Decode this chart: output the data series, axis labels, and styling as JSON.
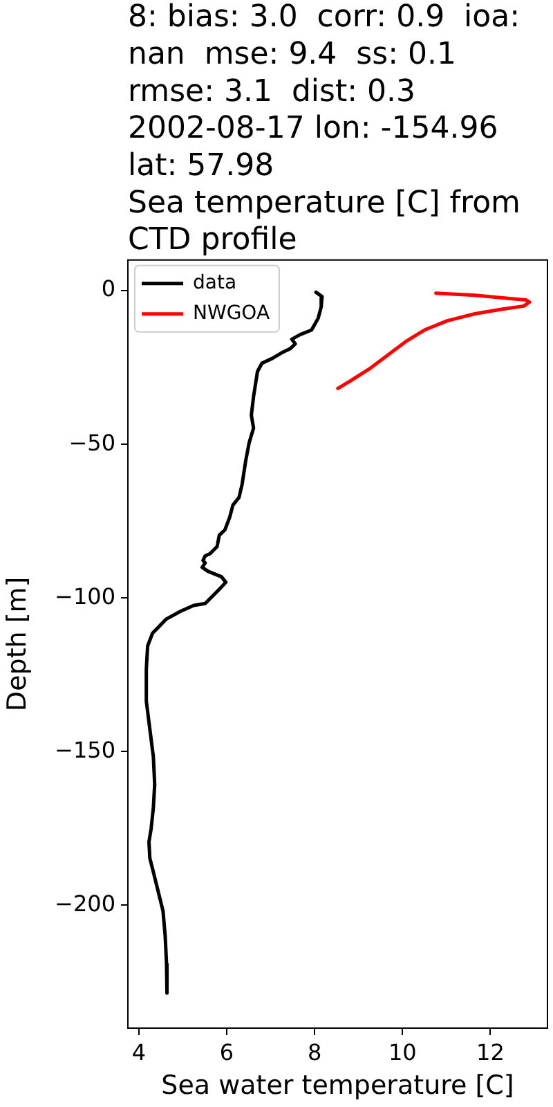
{
  "chart_data": {
    "type": "line",
    "title": "8: bias: 3.0  corr: 0.9  ioa:\nnan  mse: 9.4  ss: 0.1\nrmse: 3.1  dist: 0.3\n2002-08-17 lon: -154.96\nlat: 57.98\nSea temperature [C] from\nCTD profile",
    "xlabel": "Sea water temperature [C]",
    "ylabel": "Depth [m]",
    "xlim": [
      3.75,
      13.3
    ],
    "ylim": [
      -240,
      10
    ],
    "xticks": [
      4,
      6,
      8,
      10,
      12
    ],
    "yticks": [
      0,
      {
        "value": -50,
        "label": "−50"
      },
      {
        "value": -100,
        "label": "−100"
      },
      {
        "value": -150,
        "label": "−150"
      },
      {
        "value": -200,
        "label": "−200"
      }
    ],
    "legend": "top left",
    "series": [
      {
        "name": "data",
        "color": "#000000",
        "x": [
          8.03,
          8.17,
          8.15,
          8.08,
          7.93,
          7.67,
          7.48,
          7.56,
          7.45,
          7.24,
          7.04,
          6.8,
          6.7,
          6.61,
          6.56,
          6.61,
          6.51,
          6.43,
          6.35,
          6.28,
          6.14,
          6.07,
          5.96,
          5.83,
          5.78,
          5.62,
          5.51,
          5.46,
          5.51,
          5.44,
          5.57,
          5.88,
          5.98,
          5.78,
          5.51,
          5.25,
          4.94,
          4.62,
          4.31,
          4.2,
          4.17,
          4.17,
          4.25,
          4.33,
          4.36,
          4.33,
          4.28,
          4.23,
          4.25,
          4.33,
          4.46,
          4.55,
          4.6,
          4.63,
          4.64
        ],
        "values": [
          -0.5,
          -1.9,
          -5.3,
          -9.0,
          -12.8,
          -14.3,
          -15.8,
          -17.3,
          -18.8,
          -20.3,
          -22.0,
          -23.6,
          -26.3,
          -34.5,
          -40.5,
          -44.7,
          -49.5,
          -55.5,
          -63.0,
          -67.3,
          -69.8,
          -73.6,
          -77.8,
          -79.6,
          -83.3,
          -85.6,
          -86.3,
          -87.8,
          -88.6,
          -90.0,
          -91.3,
          -93.1,
          -94.9,
          -97.9,
          -101.8,
          -102.4,
          -104.4,
          -106.9,
          -111.5,
          -115.6,
          -123.1,
          -133.6,
          -142.7,
          -151.7,
          -160.7,
          -168.2,
          -175.0,
          -179.4,
          -184.7,
          -189.2,
          -196.7,
          -201.9,
          -210.2,
          -219.2,
          -228.6
        ]
      },
      {
        "name": "NWGOA",
        "color": "#ff0000",
        "x": [
          10.76,
          11.65,
          12.49,
          12.81,
          12.89,
          12.76,
          12.28,
          11.65,
          11.02,
          10.5,
          10.08,
          9.66,
          9.24,
          8.82,
          8.53
        ],
        "values": [
          -0.8,
          -1.5,
          -2.6,
          -3.0,
          -3.7,
          -5.0,
          -6.0,
          -7.5,
          -9.8,
          -12.8,
          -16.5,
          -21.0,
          -25.5,
          -29.3,
          -31.8
        ]
      }
    ]
  }
}
